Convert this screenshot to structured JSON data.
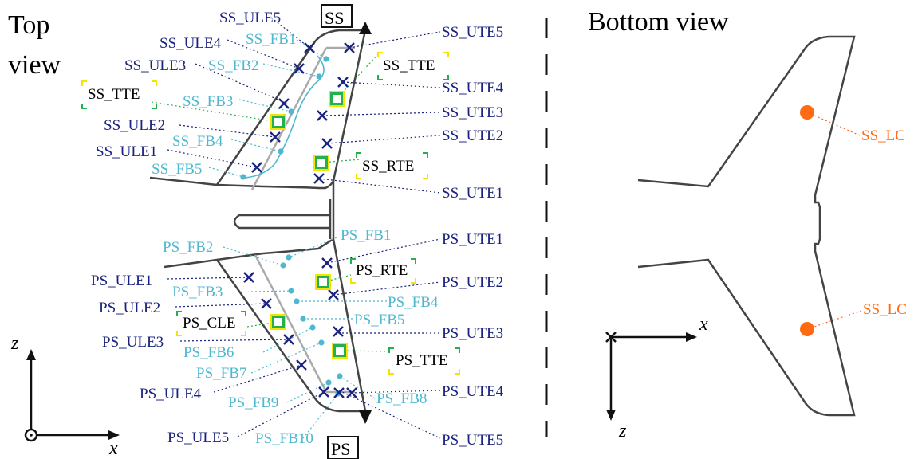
{
  "titles": {
    "top_view": [
      "Top",
      "view"
    ],
    "bottom_view": "Bottom view"
  },
  "wing_markers": {
    "ss": "SS",
    "ps": "PS"
  },
  "axes": {
    "left": {
      "z": "z",
      "x": "x"
    },
    "right": {
      "x": "x",
      "z": "z"
    }
  },
  "colors": {
    "navy": "#1a237e",
    "cyan": "#4fb8d0",
    "orange": "#ff6a13",
    "green": "#22b14c",
    "yellow": "#f5e400",
    "structure": "#444444"
  },
  "ss_labels": {
    "ule": [
      "SS_ULE1",
      "SS_ULE2",
      "SS_ULE3",
      "SS_ULE4",
      "SS_ULE5"
    ],
    "fb": [
      "SS_FB1",
      "SS_FB2",
      "SS_FB3",
      "SS_FB4",
      "SS_FB5"
    ],
    "ute": [
      "SS_UTE1",
      "SS_UTE2",
      "SS_UTE3",
      "SS_UTE4",
      "SS_UTE5"
    ],
    "boxed": [
      "SS_TTE",
      "SS_TTE",
      "SS_RTE"
    ]
  },
  "ps_labels": {
    "ule": [
      "PS_ULE1",
      "PS_ULE2",
      "PS_ULE3",
      "PS_ULE4",
      "PS_ULE5"
    ],
    "fb": [
      "PS_FB1",
      "PS_FB2",
      "PS_FB3",
      "PS_FB4",
      "PS_FB5",
      "PS_FB6",
      "PS_FB7",
      "PS_FB8",
      "PS_FB9",
      "PS_FB10"
    ],
    "ute": [
      "PS_UTE1",
      "PS_UTE2",
      "PS_UTE3",
      "PS_UTE4",
      "PS_UTE5"
    ],
    "boxed": [
      "PS_RTE",
      "PS_CLE",
      "PS_TTE"
    ]
  },
  "bottom_labels": {
    "lc_top": "SS_LC",
    "lc_bottom": "SS_LC"
  }
}
